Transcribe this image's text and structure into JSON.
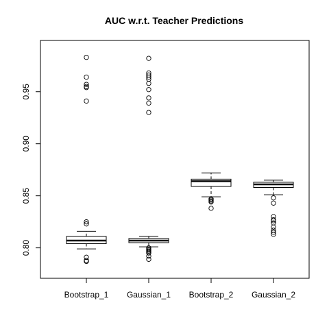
{
  "chart_data": {
    "type": "box",
    "title": "AUC w.r.t. Teacher Predictions",
    "xlabel": "",
    "ylabel": "",
    "ylim": [
      0.78,
      0.99
    ],
    "yticks": [
      0.8,
      0.85,
      0.9,
      0.95
    ],
    "y_tick_labels": [
      "0.80",
      "0.85",
      "0.90",
      "0.95"
    ],
    "grid": false,
    "categories": [
      "Bootstrap_1",
      "Gaussian_1",
      "Bootstrap_2",
      "Gaussian_2"
    ],
    "boxes": [
      {
        "category": "Bootstrap_1",
        "whisker_low": 0.799,
        "q1": 0.804,
        "median": 0.807,
        "q3": 0.811,
        "whisker_high": 0.816,
        "outliers": [
          0.983,
          0.964,
          0.957,
          0.955,
          0.954,
          0.941,
          0.825,
          0.823,
          0.791,
          0.788,
          0.787
        ]
      },
      {
        "category": "Gaussian_1",
        "whisker_low": 0.801,
        "q1": 0.805,
        "median": 0.807,
        "q3": 0.809,
        "whisker_high": 0.811,
        "outliers": [
          0.982,
          0.968,
          0.966,
          0.964,
          0.962,
          0.958,
          0.952,
          0.944,
          0.939,
          0.93,
          0.8,
          0.799,
          0.798,
          0.797,
          0.796,
          0.795,
          0.792,
          0.789
        ]
      },
      {
        "category": "Bootstrap_2",
        "whisker_low": 0.849,
        "q1": 0.859,
        "median": 0.864,
        "q3": 0.866,
        "whisker_high": 0.872,
        "outliers": [
          0.847,
          0.846,
          0.845,
          0.844,
          0.838
        ]
      },
      {
        "category": "Gaussian_2",
        "whisker_low": 0.851,
        "q1": 0.858,
        "median": 0.861,
        "q3": 0.863,
        "whisker_high": 0.865,
        "outliers": [
          0.848,
          0.843,
          0.83,
          0.827,
          0.826,
          0.824,
          0.82,
          0.817,
          0.815,
          0.813
        ]
      }
    ]
  }
}
